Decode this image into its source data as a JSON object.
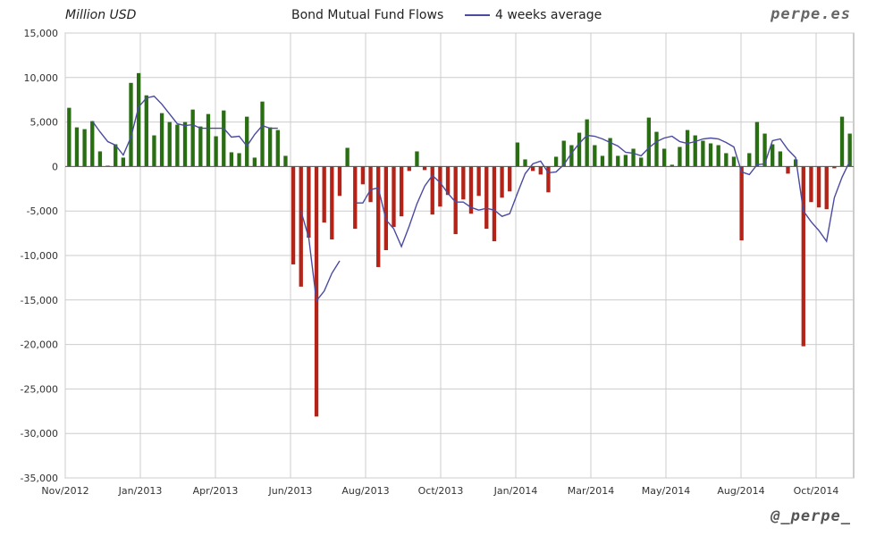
{
  "header": {
    "units": "Million USD",
    "title": "Bond Mutual Fund Flows",
    "legend_label": "4 weeks average",
    "watermark_top": "perpe.es",
    "watermark_bottom": "@_perpe_"
  },
  "colors": {
    "positive_bar": "#2a6e14",
    "negative_bar": "#b42318",
    "average_line": "#4a4aa0",
    "grid": "#cccccc",
    "plot_border": "#999999"
  },
  "chart_data": {
    "type": "bar",
    "title": "Bond Mutual Fund Flows",
    "ylabel": "Million USD",
    "ylim": [
      -35000,
      15000
    ],
    "y_ticks": [
      15000,
      10000,
      5000,
      0,
      -5000,
      -10000,
      -15000,
      -20000,
      -25000,
      -30000,
      -35000
    ],
    "y_tick_labels": [
      "15,000",
      "10,000",
      "5,000",
      "0",
      "-5,000",
      "-10,000",
      "-15,000",
      "-20,000",
      "-25,000",
      "-30,000",
      "-35,000"
    ],
    "x_tick_labels": [
      "Nov/2012",
      "Jan/2013",
      "Apr/2013",
      "Jun/2013",
      "Aug/2013",
      "Oct/2013",
      "Jan/2014",
      "Mar/2014",
      "May/2014",
      "Aug/2014",
      "Oct/2014"
    ],
    "grid": true,
    "legend": "top-center",
    "series": [
      {
        "name": "Bond Mutual Fund Flows",
        "kind": "bar",
        "values": [
          6600,
          4400,
          4200,
          5100,
          1700,
          100,
          2500,
          1000,
          9400,
          10500,
          8000,
          3500,
          6000,
          5000,
          4700,
          5000,
          6400,
          4500,
          5900,
          3400,
          6300,
          1600,
          1500,
          5600,
          1000,
          7300,
          4400,
          4100,
          1200,
          -11000,
          -13500,
          -8000,
          -28100,
          -6300,
          -8200,
          -3300,
          2100,
          -7000,
          -2000,
          -4000,
          -11300,
          -9400,
          -6800,
          -5600,
          -500,
          1700,
          -400,
          -5400,
          -4500,
          -3200,
          -7600,
          -3700,
          -5300,
          -3300,
          -7000,
          -8400,
          -3500,
          -2800,
          2700,
          800,
          -500,
          -900,
          -2900,
          1100,
          2900,
          2400,
          3800,
          5300,
          2400,
          1200,
          3200,
          1200,
          1300,
          2000,
          1000,
          5500,
          3900,
          2000,
          200,
          2200,
          4100,
          3500,
          2900,
          2600,
          2400,
          1500,
          1100,
          -8300,
          1500,
          5000,
          3700,
          2500,
          1700,
          -800,
          800,
          -20200,
          -4000,
          -4600,
          -4800,
          -200,
          5600,
          3700
        ]
      },
      {
        "name": "4 weeks average",
        "kind": "line",
        "values": [
          null,
          null,
          null,
          5100,
          3900,
          2800,
          2400,
          1300,
          3300,
          6700,
          7700,
          7900,
          7000,
          5900,
          4800,
          4600,
          4700,
          4300,
          4300,
          4300,
          4300,
          3300,
          3400,
          2300,
          3600,
          4600,
          4300,
          4300,
          null,
          null,
          -5000,
          -8000,
          -15100,
          -14000,
          -12000,
          -10600,
          null,
          -4100,
          -4100,
          -2600,
          -2400,
          -6000,
          -7000,
          -9000,
          -6700,
          -4200,
          -2200,
          -1000,
          -1800,
          -3000,
          -4000,
          -4000,
          -4600,
          -4900,
          -4700,
          -4900,
          -5600,
          -5300,
          -3000,
          -800,
          300,
          600,
          -700,
          -600,
          200,
          1500,
          2600,
          3500,
          3400,
          3100,
          2700,
          2300,
          1600,
          1500,
          1200,
          2100,
          2800,
          3200,
          3400,
          2800,
          2600,
          2800,
          3100,
          3200,
          3100,
          2700,
          2200,
          -600,
          -900,
          200,
          300,
          2900,
          3100,
          1900,
          1000,
          -5000,
          -6200,
          -7200,
          -8400,
          -3500,
          -1200,
          600
        ]
      }
    ]
  }
}
